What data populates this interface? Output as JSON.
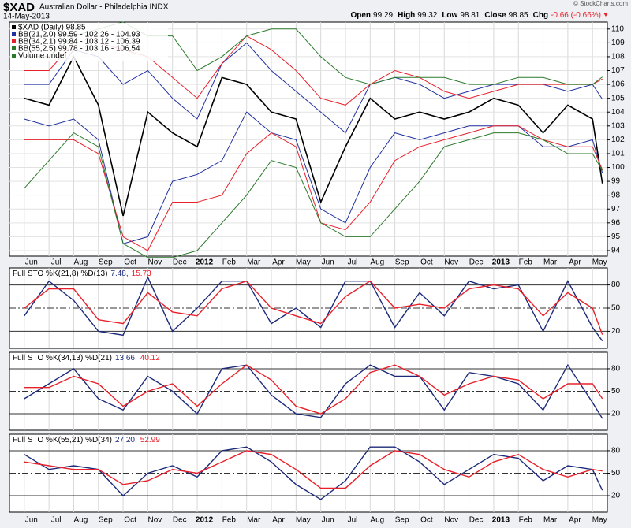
{
  "header": {
    "symbol": "$XAD",
    "name": "Australian Dollar - Philadelphia INDX",
    "date": "14-May-2013",
    "credit": "© StockCharts.com",
    "quote": [
      {
        "label": "Open",
        "value": "99.29"
      },
      {
        "label": "High",
        "value": "99.32"
      },
      {
        "label": "Low",
        "value": "98.81"
      },
      {
        "label": "Close",
        "value": "98.85"
      },
      {
        "label": "Chg",
        "value": "-0.66 (-0.66%)"
      }
    ]
  },
  "chart_data": [
    {
      "type": "line",
      "x": [
        0,
        1,
        2,
        3,
        4,
        5,
        6,
        7,
        8,
        9,
        10,
        11,
        12,
        13,
        14,
        15,
        16,
        17,
        18,
        19,
        20,
        21,
        22,
        23,
        23.4
      ],
      "xlim": [
        -0.6,
        23.6
      ],
      "xticks": [
        {
          "value": 0,
          "label": "Jun"
        },
        {
          "value": 1,
          "label": "Jul"
        },
        {
          "value": 2,
          "label": "Aug"
        },
        {
          "value": 3,
          "label": "Sep"
        },
        {
          "value": 4,
          "label": "Oct"
        },
        {
          "value": 5,
          "label": "Nov"
        },
        {
          "value": 6,
          "label": "Dec"
        },
        {
          "value": 7,
          "label": "2012"
        },
        {
          "value": 8,
          "label": "Feb"
        },
        {
          "value": 9,
          "label": "Mar"
        },
        {
          "value": 10,
          "label": "Apr"
        },
        {
          "value": 11,
          "label": "May"
        },
        {
          "value": 12,
          "label": "Jun"
        },
        {
          "value": 13,
          "label": "Jul"
        },
        {
          "value": 14,
          "label": "Aug"
        },
        {
          "value": 15,
          "label": "Sep"
        },
        {
          "value": 16,
          "label": "Oct"
        },
        {
          "value": 17,
          "label": "Nov"
        },
        {
          "value": 18,
          "label": "Dec"
        },
        {
          "value": 19,
          "label": "2013"
        },
        {
          "value": 20,
          "label": "Feb"
        },
        {
          "value": 21,
          "label": "Mar"
        },
        {
          "value": 22,
          "label": "Apr"
        },
        {
          "value": 23,
          "label": "May"
        }
      ],
      "ylim": [
        93.6,
        110.5
      ],
      "yticks": [
        94,
        95,
        96,
        97,
        98,
        99,
        100,
        101,
        102,
        103,
        104,
        105,
        106,
        107,
        108,
        109,
        110
      ],
      "grid": true,
      "series": [
        {
          "name": "$XAD (Daily) 98.85",
          "color": "#000000",
          "values": [
            105,
            104.5,
            108,
            104.5,
            96.5,
            104,
            102.5,
            101.5,
            106.5,
            106,
            104,
            103.5,
            97.5,
            101.5,
            105,
            103.5,
            104,
            103.5,
            104,
            105,
            104.5,
            102.5,
            104.5,
            103.5,
            98.85
          ]
        },
        {
          "name": "BB(21,2.0) 99.59 - 102.26 - 104.93",
          "color": "#2030a0",
          "upper": [
            106,
            106,
            108.5,
            108,
            106,
            107,
            105,
            103.5,
            107.5,
            109,
            107,
            105.5,
            104,
            102.5,
            106,
            106.5,
            106,
            105,
            105.5,
            106,
            106,
            106,
            105.5,
            106,
            104.93
          ],
          "lower": [
            103.5,
            103,
            103.5,
            102,
            94.5,
            95,
            99,
            99.5,
            100.5,
            104,
            102.5,
            102,
            97,
            96,
            100,
            102.5,
            102,
            102.5,
            103,
            103,
            103,
            101.5,
            101.5,
            102,
            99.59
          ]
        },
        {
          "name": "BB(34,2.1) 99.84 - 103.12 - 106.39",
          "color": "#e8202a",
          "upper": [
            107,
            107,
            109,
            109,
            108.5,
            108,
            106.5,
            105,
            107.5,
            109.5,
            108.5,
            107,
            105,
            104.5,
            106,
            107,
            106.5,
            105.5,
            105,
            105.5,
            106,
            106,
            106,
            106,
            106.39
          ],
          "lower": [
            102,
            102,
            102,
            101,
            95,
            94,
            97.5,
            97.5,
            98,
            101,
            102.5,
            101.5,
            96,
            95.5,
            97.5,
            100.5,
            101.5,
            102,
            102.5,
            103,
            103,
            102,
            101.5,
            101.5,
            99.84
          ]
        },
        {
          "name": "BB(55,2.5) 99.78 - 103.16 - 106.54",
          "color": "#2a7a2a",
          "upper": [
            108,
            108,
            109.5,
            110,
            110.5,
            109.5,
            109.5,
            107,
            108,
            109.5,
            110,
            110,
            108,
            106.5,
            106,
            106.5,
            106.5,
            106.5,
            106,
            106,
            106.5,
            106.5,
            106,
            106,
            106.54
          ],
          "lower": [
            98.5,
            100.5,
            102.5,
            101.5,
            94.5,
            93.5,
            93.5,
            94,
            96,
            98,
            100.5,
            100,
            96,
            95,
            95,
            97,
            99,
            101.5,
            102,
            102.5,
            102.5,
            102,
            101,
            101,
            99.78
          ]
        }
      ],
      "legend_note": {
        "name": "Volume undef",
        "color": "#2a7a2a"
      }
    },
    {
      "type": "line",
      "title": "Full STO %K(21,8) %D(13)",
      "ylim": [
        -2,
        102
      ],
      "yticks": [
        20,
        50,
        80
      ],
      "series": [
        {
          "label": "7.48,",
          "color": "#1c2a7a",
          "values": [
            40,
            85,
            60,
            20,
            15,
            90,
            20,
            50,
            85,
            85,
            30,
            50,
            25,
            85,
            85,
            25,
            70,
            40,
            85,
            75,
            80,
            20,
            85,
            25,
            7.48
          ]
        },
        {
          "label": "15.73",
          "color": "#e8202a",
          "values": [
            50,
            75,
            75,
            35,
            30,
            70,
            45,
            40,
            75,
            85,
            50,
            40,
            30,
            65,
            85,
            50,
            55,
            50,
            75,
            80,
            75,
            40,
            70,
            50,
            15.73
          ]
        }
      ]
    },
    {
      "type": "line",
      "title": "Full STO %K(34,13) %D(21)",
      "ylim": [
        -2,
        102
      ],
      "yticks": [
        20,
        50,
        80
      ],
      "series": [
        {
          "label": "13.66,",
          "color": "#1c2a7a",
          "values": [
            40,
            60,
            80,
            40,
            25,
            70,
            50,
            20,
            80,
            85,
            45,
            20,
            15,
            60,
            85,
            70,
            70,
            25,
            75,
            70,
            60,
            25,
            85,
            35,
            13.66
          ]
        },
        {
          "label": "40.12",
          "color": "#e8202a",
          "values": [
            55,
            55,
            70,
            60,
            30,
            50,
            60,
            30,
            60,
            85,
            65,
            30,
            20,
            40,
            75,
            85,
            70,
            45,
            60,
            70,
            65,
            40,
            60,
            60,
            40.12
          ]
        }
      ]
    },
    {
      "type": "line",
      "title": "Full STO %K(55,21) %D(34)",
      "ylim": [
        -2,
        102
      ],
      "yticks": [
        20,
        50,
        80
      ],
      "series": [
        {
          "label": "27.20,",
          "color": "#1c2a7a",
          "values": [
            75,
            55,
            60,
            55,
            20,
            50,
            60,
            45,
            80,
            85,
            65,
            35,
            15,
            40,
            85,
            85,
            65,
            35,
            55,
            75,
            70,
            40,
            60,
            55,
            27.2
          ]
        },
        {
          "label": "52.99",
          "color": "#e8202a",
          "values": [
            65,
            60,
            55,
            55,
            35,
            40,
            55,
            50,
            65,
            80,
            75,
            55,
            30,
            30,
            60,
            80,
            75,
            55,
            45,
            65,
            75,
            55,
            45,
            55,
            52.99
          ]
        }
      ]
    }
  ]
}
